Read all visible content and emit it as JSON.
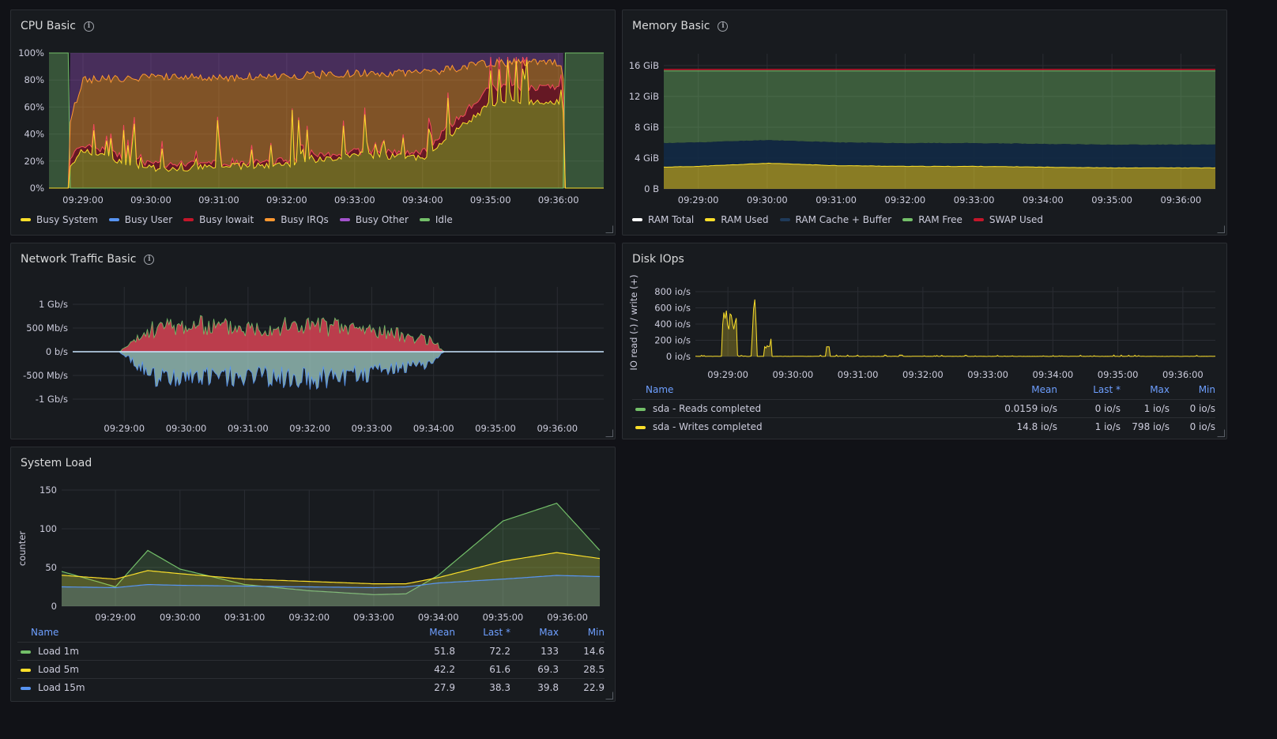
{
  "colors": {
    "green": "#73bf69",
    "yellow": "#fade2a",
    "blue": "#5794f2",
    "red": "#f2495c",
    "darkred": "#c4162a",
    "orange": "#ff9830",
    "purple": "#a352cc",
    "white": "#ffffff",
    "darkblue": "#1f3a5a"
  },
  "cpu": {
    "title": "CPU Basic",
    "legend": [
      "Busy System",
      "Busy User",
      "Busy Iowait",
      "Busy IRQs",
      "Busy Other",
      "Idle"
    ],
    "legend_colors": [
      "#fade2a",
      "#5794f2",
      "#c4162a",
      "#ff9830",
      "#a352cc",
      "#73bf69"
    ],
    "y_ticks": [
      "0%",
      "20%",
      "40%",
      "60%",
      "80%",
      "100%"
    ],
    "x_ticks": [
      "09:29:00",
      "09:30:00",
      "09:31:00",
      "09:32:00",
      "09:33:00",
      "09:34:00",
      "09:35:00",
      "09:36:00"
    ]
  },
  "memory": {
    "title": "Memory Basic",
    "legend": [
      "RAM Total",
      "RAM Used",
      "RAM Cache + Buffer",
      "RAM Free",
      "SWAP Used"
    ],
    "legend_colors": [
      "#ffffff",
      "#fade2a",
      "#1f3a5a",
      "#73bf69",
      "#c4162a"
    ],
    "y_ticks": [
      "0 B",
      "4 GiB",
      "8 GiB",
      "12 GiB",
      "16 GiB"
    ],
    "x_ticks": [
      "09:29:00",
      "09:30:00",
      "09:31:00",
      "09:32:00",
      "09:33:00",
      "09:34:00",
      "09:35:00",
      "09:36:00"
    ]
  },
  "network": {
    "title": "Network Traffic Basic",
    "y_ticks": [
      "-1 Gb/s",
      "-500 Mb/s",
      "0 b/s",
      "500 Mb/s",
      "1 Gb/s"
    ],
    "x_ticks": [
      "09:29:00",
      "09:30:00",
      "09:31:00",
      "09:32:00",
      "09:33:00",
      "09:34:00",
      "09:35:00",
      "09:36:00"
    ]
  },
  "disk": {
    "title": "Disk IOps",
    "ylabel": "IO read (-) / write (+)",
    "y_ticks": [
      "0 io/s",
      "200 io/s",
      "400 io/s",
      "600 io/s",
      "800 io/s"
    ],
    "x_ticks": [
      "09:29:00",
      "09:30:00",
      "09:31:00",
      "09:32:00",
      "09:33:00",
      "09:34:00",
      "09:35:00",
      "09:36:00"
    ],
    "table": {
      "headers": [
        "Name",
        "Mean",
        "Last *",
        "Max",
        "Min"
      ],
      "rows": [
        {
          "name": "sda - Reads completed",
          "color": "#73bf69",
          "mean": "0.0159 io/s",
          "last": "0 io/s",
          "max": "1 io/s",
          "min": "0 io/s"
        },
        {
          "name": "sda - Writes completed",
          "color": "#fade2a",
          "mean": "14.8 io/s",
          "last": "1 io/s",
          "max": "798 io/s",
          "min": "0 io/s"
        }
      ]
    }
  },
  "load": {
    "title": "System Load",
    "ylabel": "counter",
    "y_ticks": [
      "0",
      "50",
      "100",
      "150"
    ],
    "x_ticks": [
      "09:29:00",
      "09:30:00",
      "09:31:00",
      "09:32:00",
      "09:33:00",
      "09:34:00",
      "09:35:00",
      "09:36:00"
    ],
    "table": {
      "headers": [
        "Name",
        "Mean",
        "Last *",
        "Max",
        "Min"
      ],
      "rows": [
        {
          "name": "Load 1m",
          "color": "#73bf69",
          "mean": "51.8",
          "last": "72.2",
          "max": "133",
          "min": "14.6"
        },
        {
          "name": "Load 5m",
          "color": "#fade2a",
          "mean": "42.2",
          "last": "61.6",
          "max": "69.3",
          "min": "28.5"
        },
        {
          "name": "Load 15m",
          "color": "#5794f2",
          "mean": "27.9",
          "last": "38.3",
          "max": "39.8",
          "min": "22.9"
        }
      ]
    }
  },
  "chart_data": [
    {
      "type": "area",
      "title": "CPU Basic",
      "ylim": [
        0,
        100
      ],
      "x": [
        "09:28:30",
        "09:29:00",
        "09:30:00",
        "09:31:00",
        "09:32:00",
        "09:33:00",
        "09:34:00",
        "09:35:00",
        "09:36:00",
        "09:36:40"
      ],
      "series": [
        {
          "name": "Busy System",
          "values": [
            0,
            25,
            12,
            13,
            15,
            22,
            20,
            60,
            62,
            0
          ]
        },
        {
          "name": "Busy Iowait",
          "values": [
            0,
            30,
            15,
            16,
            18,
            25,
            24,
            72,
            72,
            0
          ]
        },
        {
          "name": "Busy IRQs",
          "values": [
            0,
            80,
            82,
            82,
            83,
            85,
            85,
            93,
            93,
            0
          ]
        },
        {
          "name": "Busy Other",
          "values": [
            0,
            100,
            100,
            100,
            100,
            100,
            100,
            100,
            100,
            0
          ]
        },
        {
          "name": "Idle",
          "values": [
            100,
            0,
            0,
            0,
            0,
            0,
            0,
            0,
            0,
            100
          ]
        }
      ]
    },
    {
      "type": "area",
      "title": "Memory Basic",
      "ylim": [
        0,
        17
      ],
      "x": [
        "09:28:30",
        "09:29:00",
        "09:30:00",
        "09:31:00",
        "09:32:00",
        "09:33:00",
        "09:34:00",
        "09:35:00",
        "09:36:00",
        "09:36:30"
      ],
      "series": [
        {
          "name": "RAM Total",
          "values": [
            15.5,
            15.5,
            15.5,
            15.5,
            15.5,
            15.5,
            15.5,
            15.5,
            15.5,
            15.5
          ]
        },
        {
          "name": "RAM Used",
          "values": [
            2.8,
            2.9,
            3.3,
            3.0,
            2.9,
            2.9,
            2.8,
            2.7,
            2.7,
            2.7
          ]
        },
        {
          "name": "RAM Cache + Buffer",
          "values": [
            5.9,
            6.0,
            6.3,
            6.0,
            5.9,
            5.9,
            5.8,
            5.7,
            5.7,
            5.7
          ]
        },
        {
          "name": "RAM Free",
          "values": [
            15.3,
            15.3,
            15.3,
            15.3,
            15.3,
            15.3,
            15.3,
            15.3,
            15.3,
            15.3
          ]
        },
        {
          "name": "SWAP Used",
          "values": [
            0,
            0,
            0,
            0,
            0,
            0,
            0,
            0,
            0,
            0
          ]
        }
      ]
    },
    {
      "type": "area",
      "title": "Network Traffic Basic",
      "ylim": [
        -1.2,
        1.2
      ],
      "x": [
        "09:28:10",
        "09:28:55",
        "09:29:30",
        "09:30:00",
        "09:31:00",
        "09:32:00",
        "09:33:00",
        "09:34:00",
        "09:34:10",
        "09:36:45"
      ],
      "series": [
        {
          "name": "receive",
          "values": [
            0,
            0,
            0.55,
            0.6,
            0.55,
            0.6,
            0.5,
            0.25,
            0,
            0
          ]
        },
        {
          "name": "transmit",
          "values": [
            0,
            0,
            -0.6,
            -0.55,
            -0.6,
            -0.65,
            -0.5,
            -0.25,
            0,
            0
          ]
        }
      ]
    },
    {
      "type": "line",
      "title": "Disk IOps",
      "ylabel": "IO read (-) / write (+)",
      "ylim": [
        0,
        880
      ],
      "x": [
        "09:28:30",
        "09:28:55",
        "09:29:00",
        "09:29:05",
        "09:29:10",
        "09:29:25",
        "09:29:30",
        "09:30:30",
        "09:30:35",
        "09:31:00",
        "09:36:30"
      ],
      "series": [
        {
          "name": "sda - Writes completed",
          "values": [
            0,
            10,
            560,
            400,
            0,
            798,
            0,
            0,
            120,
            0,
            0
          ]
        },
        {
          "name": "sda - Reads completed",
          "values": [
            0,
            0,
            0,
            0,
            0,
            0,
            0,
            0,
            0,
            0,
            0
          ]
        }
      ]
    },
    {
      "type": "area",
      "title": "System Load",
      "ylabel": "counter",
      "ylim": [
        0,
        150
      ],
      "x": [
        "09:28:10",
        "09:29:00",
        "09:29:30",
        "09:30:00",
        "09:31:00",
        "09:32:00",
        "09:33:00",
        "09:33:30",
        "09:34:00",
        "09:35:00",
        "09:35:50",
        "09:36:30"
      ],
      "series": [
        {
          "name": "Load 1m",
          "values": [
            45,
            25,
            72,
            48,
            28,
            20,
            15,
            16,
            40,
            110,
            133,
            72
          ]
        },
        {
          "name": "Load 5m",
          "values": [
            40,
            35,
            46,
            42,
            35,
            32,
            29,
            29,
            37,
            58,
            69.3,
            61.6
          ]
        },
        {
          "name": "Load 15m",
          "values": [
            25,
            24,
            28,
            27,
            26,
            25,
            24,
            25,
            30,
            35,
            39.8,
            38.3
          ]
        }
      ]
    }
  ]
}
